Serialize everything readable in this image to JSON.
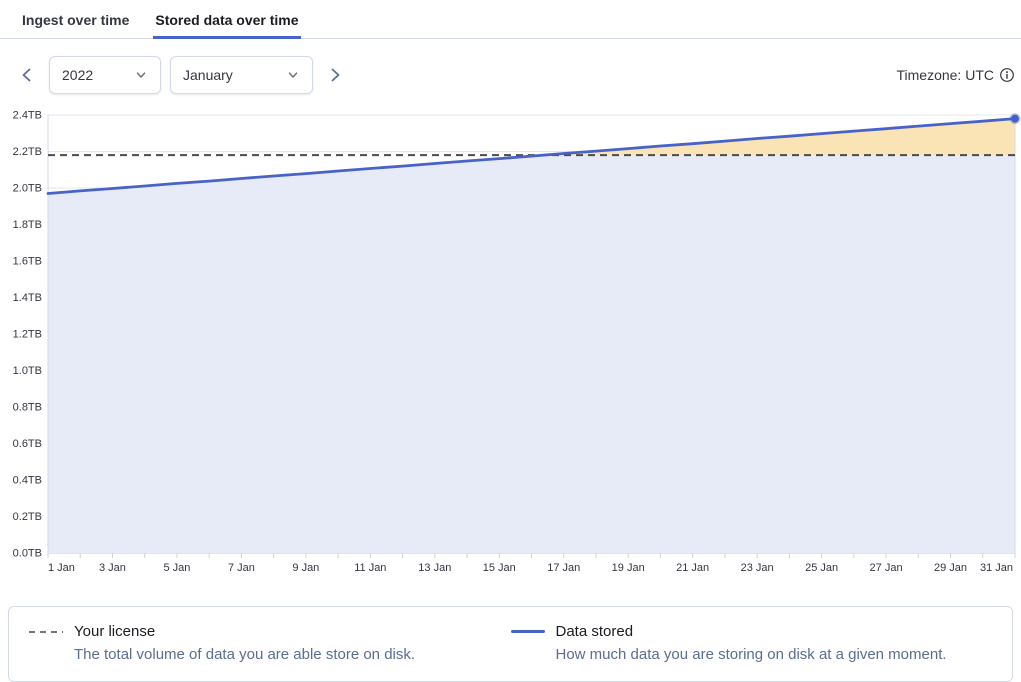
{
  "tabs": [
    {
      "label": "Ingest over time",
      "active": false
    },
    {
      "label": "Stored data over time",
      "active": true
    }
  ],
  "controls": {
    "year": "2022",
    "month": "January",
    "prev_icon": "chevron-left",
    "next_icon": "chevron-right",
    "timezone_label": "Timezone: UTC",
    "info_icon": "info-circle"
  },
  "chart_data": {
    "type": "area",
    "title": "Stored data over time",
    "x_unit": "day of January 2022",
    "days": [
      1,
      2,
      3,
      4,
      5,
      6,
      7,
      8,
      9,
      10,
      11,
      12,
      13,
      14,
      15,
      16,
      17,
      18,
      19,
      20,
      21,
      22,
      23,
      24,
      25,
      26,
      27,
      28,
      29,
      30,
      31
    ],
    "x_tick_days": [
      1,
      3,
      5,
      7,
      9,
      11,
      13,
      15,
      17,
      19,
      21,
      23,
      25,
      27,
      29,
      31
    ],
    "x_tick_labels": [
      "1 Jan",
      "3 Jan",
      "5 Jan",
      "7 Jan",
      "9 Jan",
      "11 Jan",
      "13 Jan",
      "15 Jan",
      "17 Jan",
      "19 Jan",
      "21 Jan",
      "23 Jan",
      "25 Jan",
      "27 Jan",
      "29 Jan",
      "31 Jan"
    ],
    "y_tick_labels": [
      "0.0TB",
      "0.2TB",
      "0.4TB",
      "0.6TB",
      "0.8TB",
      "1.0TB",
      "1.2TB",
      "1.4TB",
      "1.6TB",
      "1.8TB",
      "2.0TB",
      "2.2TB",
      "2.4TB"
    ],
    "ylim": [
      0,
      2.4
    ],
    "grid": true,
    "legend_position": "bottom",
    "series": [
      {
        "name": "Data stored",
        "color": "#4763c9",
        "fill_below_license": "#e7ebf8",
        "fill_above_license": "#fae3b5",
        "end_marker": true,
        "values": [
          1.97,
          1.984,
          1.997,
          2.011,
          2.025,
          2.038,
          2.052,
          2.066,
          2.079,
          2.093,
          2.107,
          2.12,
          2.134,
          2.148,
          2.161,
          2.175,
          2.189,
          2.202,
          2.216,
          2.23,
          2.243,
          2.257,
          2.271,
          2.284,
          2.298,
          2.312,
          2.325,
          2.339,
          2.353,
          2.366,
          2.38
        ]
      }
    ],
    "license": {
      "name": "Your license",
      "value_tb": 2.18,
      "style": "dashed",
      "color": "#4b4b4b"
    }
  },
  "legend": [
    {
      "swatch": "dashed",
      "title": "Your license",
      "description": "The total volume of data you are able store on disk."
    },
    {
      "swatch": "line",
      "title": "Data stored",
      "description": "How much data you are storing on disk at a given moment."
    }
  ]
}
